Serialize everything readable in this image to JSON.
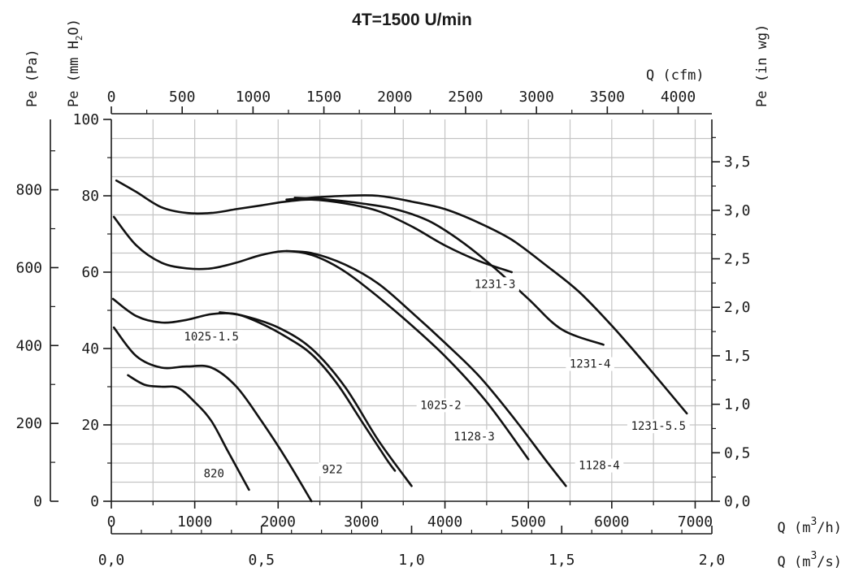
{
  "chart_data": {
    "type": "line",
    "title": "4T=1500 U/min",
    "x_primary": {
      "label": "Q (m3/h)",
      "label_base": "Q (m",
      "label_sup": "3",
      "label_tail": "/h)",
      "range": [
        0,
        7200
      ],
      "ticks": [
        0,
        1000,
        2000,
        3000,
        4000,
        5000,
        6000,
        7000
      ],
      "tick_labels": [
        "0",
        "1000",
        "2000",
        "3000",
        "4000",
        "5000",
        "6000",
        "7000"
      ]
    },
    "x_bottom2": {
      "label": "Q (m3/s)",
      "label_base": "Q (m",
      "label_sup": "3",
      "label_tail": "/s)",
      "ticks": [
        0.0,
        0.5,
        1.0,
        1.5,
        2.0
      ],
      "tick_labels": [
        "0,0",
        "0,5",
        "1,0",
        "1,5",
        "2,0"
      ]
    },
    "x_top": {
      "label": "Q (cfm)",
      "ticks": [
        0,
        500,
        1000,
        1500,
        2000,
        2500,
        3000,
        3500,
        4000
      ],
      "tick_labels": [
        "0",
        "500",
        "1000",
        "1500",
        "2000",
        "2500",
        "3000",
        "3500",
        "4000"
      ]
    },
    "y_primary": {
      "label": "Pe (mm H2O)",
      "label_pre": "Pe  (mm H",
      "label_sub": "2",
      "label_post": "O)",
      "range": [
        0,
        100
      ],
      "ticks": [
        0,
        20,
        40,
        60,
        80,
        100
      ],
      "tick_labels": [
        "0",
        "20",
        "40",
        "60",
        "80",
        "100"
      ]
    },
    "y_outer": {
      "label": "Pe  (Pa)",
      "ticks": [
        0,
        200,
        400,
        600,
        800
      ],
      "tick_labels": [
        "0",
        "200",
        "400",
        "600",
        "800"
      ]
    },
    "y_right": {
      "label": "Pe  (in  wg)",
      "ticks": [
        0.0,
        0.5,
        1.0,
        1.5,
        2.0,
        2.5,
        3.0,
        3.5
      ],
      "tick_labels": [
        "0,0",
        "0,5",
        "1,0",
        "1,5",
        "2,0",
        "2,5",
        "3,0",
        "3,5"
      ]
    },
    "grid": true,
    "series": [
      {
        "name": "820",
        "x": [
          200,
          400,
          600,
          800,
          1000,
          1200,
          1400,
          1650
        ],
        "y": [
          33,
          30.5,
          30,
          29.7,
          26,
          21,
          13,
          3
        ]
      },
      {
        "name": "922",
        "x": [
          30,
          300,
          600,
          900,
          1200,
          1500,
          1800,
          2100,
          2400
        ],
        "y": [
          45.5,
          38,
          35,
          35.3,
          35,
          30,
          21,
          11,
          0
        ]
      },
      {
        "name": "1025-1.5",
        "x": [
          20,
          300,
          600,
          900,
          1200,
          1500,
          1800,
          2100,
          2400,
          2700,
          3000,
          3300,
          3400
        ],
        "y": [
          53,
          48.5,
          46.8,
          47.5,
          49,
          49,
          46.5,
          43,
          38.5,
          31,
          21,
          11,
          8
        ]
      },
      {
        "name": "1025-2",
        "x": [
          1300,
          1600,
          2000,
          2400,
          2800,
          3200,
          3600
        ],
        "y": [
          49.5,
          48.5,
          45.5,
          40,
          30,
          16,
          4
        ]
      },
      {
        "name": "1128-3",
        "x": [
          30,
          300,
          600,
          900,
          1200,
          1500,
          1800,
          2100,
          2400,
          2700,
          3000,
          3500,
          4000,
          4500,
          5000
        ],
        "y": [
          74.5,
          67,
          62.5,
          61,
          61,
          62.5,
          64.5,
          65.5,
          64.5,
          61.5,
          57,
          48,
          38,
          26,
          11
        ]
      },
      {
        "name": "1128-4",
        "x": [
          2100,
          2400,
          2800,
          3200,
          3600,
          4000,
          4400,
          4800,
          5200,
          5450
        ],
        "y": [
          65.5,
          65,
          62,
          57,
          49.5,
          41.5,
          33,
          22.5,
          11,
          4
        ]
      },
      {
        "name": "1231-3",
        "x": [
          60,
          300,
          600,
          900,
          1200,
          1500,
          1800,
          2100,
          2400,
          2800,
          3200,
          3600,
          4000,
          4400,
          4800
        ],
        "y": [
          84,
          81,
          77,
          75.5,
          75.5,
          76.5,
          77.5,
          78.5,
          79,
          78,
          76,
          72,
          67,
          63,
          60
        ]
      },
      {
        "name": "1231-4",
        "x": [
          2200,
          2600,
          3000,
          3400,
          3800,
          4200,
          4600,
          5000,
          5400,
          5900
        ],
        "y": [
          79.5,
          79,
          78,
          76.5,
          73.5,
          68,
          61,
          53,
          45,
          41
        ]
      },
      {
        "name": "1231-5.5",
        "x": [
          2100,
          2400,
          2800,
          3200,
          3600,
          4000,
          4400,
          4800,
          5200,
          5600,
          6000,
          6400,
          6900
        ],
        "y": [
          79,
          79.5,
          80,
          80,
          78.5,
          76.5,
          73,
          68.5,
          62,
          55,
          46,
          36,
          23
        ]
      }
    ],
    "curve_labels": [
      {
        "text": "820",
        "x": 1230,
        "y": 6.5
      },
      {
        "text": "922",
        "x": 2650,
        "y": 7.6
      },
      {
        "text": "1025-1.5",
        "x": 1200,
        "y": 42.3
      },
      {
        "text": "1025-2",
        "x": 3950,
        "y": 24.4
      },
      {
        "text": "1128-3",
        "x": 4350,
        "y": 16.2
      },
      {
        "text": "1128-4",
        "x": 5850,
        "y": 8.6
      },
      {
        "text": "1231-3",
        "x": 4600,
        "y": 56.1
      },
      {
        "text": "1231-4",
        "x": 5740,
        "y": 35.2
      },
      {
        "text": "1231-5.5",
        "x": 6560,
        "y": 18.9
      }
    ]
  }
}
